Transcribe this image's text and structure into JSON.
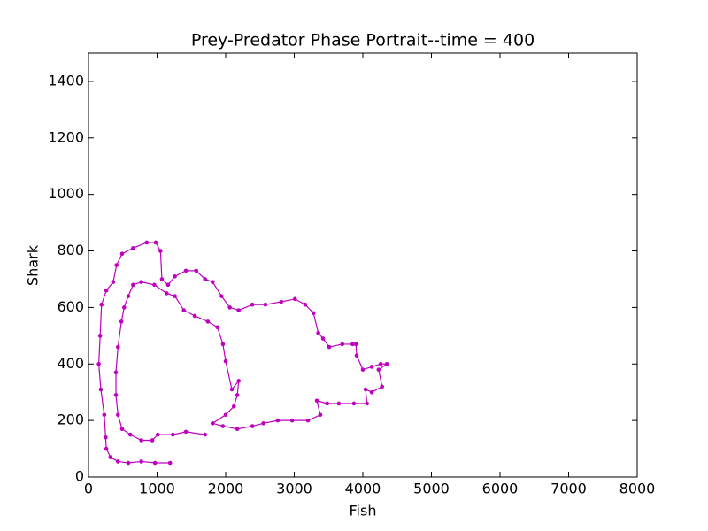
{
  "chart_data": {
    "type": "line",
    "title": "Prey-Predator Phase Portrait--time = 400",
    "x_label": "Fish",
    "y_label": "Shark",
    "color": "#bf00bf",
    "markers": true,
    "xlim": [
      0,
      8000
    ],
    "ylim": [
      0,
      1500
    ],
    "xticks": [
      0,
      1000,
      2000,
      3000,
      4000,
      5000,
      6000,
      7000,
      8000
    ],
    "yticks": [
      0,
      200,
      400,
      600,
      800,
      1000,
      1200,
      1400
    ],
    "x": [
      1190,
      970,
      770,
      580,
      430,
      320,
      260,
      250,
      230,
      180,
      150,
      170,
      190,
      260,
      360,
      410,
      490,
      650,
      850,
      980,
      1050,
      1070,
      1160,
      1260,
      1420,
      1570,
      1700,
      1810,
      1940,
      2060,
      2190,
      2390,
      2580,
      2810,
      3010,
      3160,
      3280,
      3350,
      3420,
      3510,
      3700,
      3850,
      3900,
      3910,
      4000,
      4130,
      4260,
      4350,
      4230,
      4280,
      4130,
      4040,
      4060,
      3870,
      3650,
      3480,
      3330,
      3380,
      3200,
      2970,
      2760,
      2550,
      2390,
      2170,
      1960,
      1810,
      2000,
      2120,
      2170,
      2190,
      2090,
      2000,
      1960,
      1880,
      1740,
      1550,
      1390,
      1260,
      1140,
      960,
      770,
      650,
      580,
      520,
      480,
      430,
      400,
      400,
      430,
      490,
      610,
      770,
      930,
      1010,
      1230,
      1420,
      1700
    ],
    "values": [
      50,
      50,
      55,
      50,
      55,
      70,
      100,
      140,
      220,
      310,
      400,
      500,
      610,
      660,
      690,
      750,
      790,
      810,
      830,
      830,
      800,
      700,
      680,
      710,
      730,
      730,
      700,
      690,
      640,
      600,
      590,
      610,
      610,
      620,
      630,
      610,
      580,
      510,
      490,
      460,
      470,
      470,
      470,
      430,
      380,
      390,
      400,
      400,
      380,
      320,
      300,
      310,
      260,
      260,
      260,
      260,
      270,
      220,
      200,
      200,
      200,
      190,
      180,
      170,
      180,
      190,
      220,
      250,
      290,
      340,
      310,
      410,
      470,
      530,
      550,
      570,
      590,
      640,
      650,
      680,
      690,
      680,
      640,
      600,
      550,
      460,
      370,
      290,
      220,
      170,
      150,
      130,
      130,
      150,
      150,
      160,
      150
    ]
  }
}
